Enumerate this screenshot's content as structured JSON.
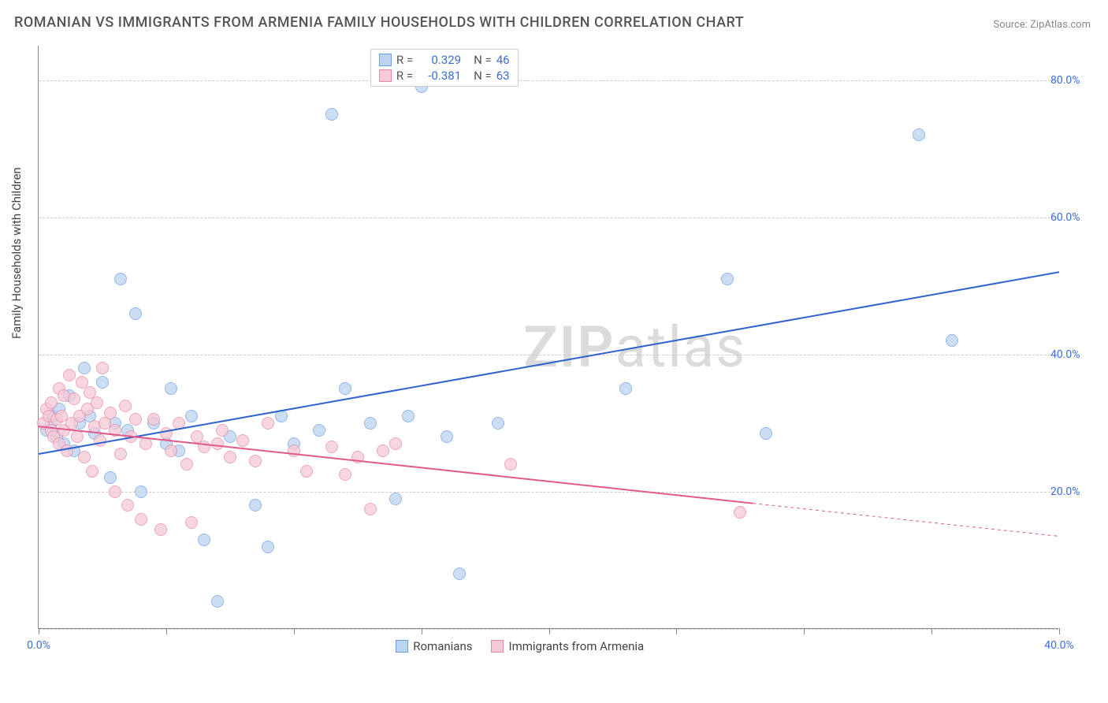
{
  "title": "ROMANIAN VS IMMIGRANTS FROM ARMENIA FAMILY HOUSEHOLDS WITH CHILDREN CORRELATION CHART",
  "source_prefix": "Source: ",
  "source_name": "ZipAtlas.com",
  "ylabel": "Family Households with Children",
  "watermark_bold": "ZIP",
  "watermark_light": "atlas",
  "chart": {
    "type": "scatter",
    "background_color": "#ffffff",
    "grid_color": "#cccccc",
    "xlim": [
      0,
      40
    ],
    "ylim": [
      0,
      85
    ],
    "x_ticks": [
      0,
      5,
      10,
      15,
      20,
      25,
      30,
      35,
      40
    ],
    "x_tick_labels": {
      "0": "0.0%",
      "40": "40.0%"
    },
    "y_ticks": [
      0,
      20,
      40,
      60,
      80
    ],
    "y_tick_labels": {
      "20": "20.0%",
      "40": "40.0%",
      "60": "60.0%",
      "80": "80.0%"
    },
    "x_tick_label_color": "#3b6fd4",
    "y_tick_label_color": "#3b6fd4",
    "marker_radius": 8,
    "marker_stroke_width": 1,
    "trend_line_width": 2,
    "series": [
      {
        "key": "romanians",
        "label": "Romanians",
        "R": "0.329",
        "N": "46",
        "fill": "#bcd4f0",
        "stroke": "#6fa0de",
        "line_color": "#2f64d0",
        "trend": {
          "x1": 0,
          "y1": 25.5,
          "x2": 40,
          "y2": 52,
          "dash_from_x": null
        },
        "points": [
          [
            0.3,
            29
          ],
          [
            0.5,
            30
          ],
          [
            0.6,
            31
          ],
          [
            0.7,
            28
          ],
          [
            0.8,
            32
          ],
          [
            1.0,
            27
          ],
          [
            1.2,
            34
          ],
          [
            1.4,
            26
          ],
          [
            1.6,
            30
          ],
          [
            1.8,
            38
          ],
          [
            2.0,
            31
          ],
          [
            2.2,
            28.5
          ],
          [
            2.5,
            36
          ],
          [
            2.8,
            22
          ],
          [
            3.0,
            30
          ],
          [
            3.2,
            51
          ],
          [
            3.5,
            29
          ],
          [
            3.8,
            46
          ],
          [
            4.0,
            20
          ],
          [
            4.5,
            30
          ],
          [
            5.0,
            27
          ],
          [
            5.2,
            35
          ],
          [
            5.5,
            26
          ],
          [
            6.0,
            31
          ],
          [
            6.5,
            13
          ],
          [
            7.0,
            4
          ],
          [
            7.5,
            28
          ],
          [
            8.5,
            18
          ],
          [
            9.0,
            12
          ],
          [
            9.5,
            31
          ],
          [
            10.0,
            27
          ],
          [
            11.0,
            29
          ],
          [
            11.5,
            75
          ],
          [
            12.0,
            35
          ],
          [
            13.0,
            30
          ],
          [
            14.0,
            19
          ],
          [
            14.5,
            31
          ],
          [
            15.0,
            79
          ],
          [
            16.0,
            28
          ],
          [
            16.5,
            8
          ],
          [
            18.0,
            30
          ],
          [
            23.0,
            35
          ],
          [
            27.0,
            51
          ],
          [
            28.5,
            28.5
          ],
          [
            34.5,
            72
          ],
          [
            35.8,
            42
          ]
        ]
      },
      {
        "key": "armenia",
        "label": "Immigrants from Armenia",
        "R": "-0.381",
        "N": "63",
        "fill": "#f6c9d6",
        "stroke": "#e88aa8",
        "line_color": "#e05a8a",
        "trend": {
          "x1": 0,
          "y1": 29.5,
          "x2": 40,
          "y2": 13.5,
          "dash_from_x": 28
        },
        "points": [
          [
            0.2,
            30
          ],
          [
            0.3,
            32
          ],
          [
            0.4,
            31
          ],
          [
            0.5,
            29
          ],
          [
            0.5,
            33
          ],
          [
            0.6,
            28
          ],
          [
            0.7,
            30.5
          ],
          [
            0.8,
            35
          ],
          [
            0.8,
            27
          ],
          [
            0.9,
            31
          ],
          [
            1.0,
            34
          ],
          [
            1.0,
            29
          ],
          [
            1.1,
            26
          ],
          [
            1.2,
            37
          ],
          [
            1.3,
            30
          ],
          [
            1.4,
            33.5
          ],
          [
            1.5,
            28
          ],
          [
            1.6,
            31
          ],
          [
            1.7,
            36
          ],
          [
            1.8,
            25
          ],
          [
            1.9,
            32
          ],
          [
            2.0,
            34.5
          ],
          [
            2.1,
            23
          ],
          [
            2.2,
            29.5
          ],
          [
            2.3,
            33
          ],
          [
            2.4,
            27.5
          ],
          [
            2.5,
            38
          ],
          [
            2.6,
            30
          ],
          [
            2.8,
            31.5
          ],
          [
            3.0,
            20
          ],
          [
            3.0,
            29
          ],
          [
            3.2,
            25.5
          ],
          [
            3.4,
            32.5
          ],
          [
            3.5,
            18
          ],
          [
            3.6,
            28
          ],
          [
            3.8,
            30.5
          ],
          [
            4.0,
            16
          ],
          [
            4.2,
            27
          ],
          [
            4.5,
            30.5
          ],
          [
            4.8,
            14.5
          ],
          [
            5.0,
            28.5
          ],
          [
            5.2,
            26
          ],
          [
            5.5,
            30
          ],
          [
            5.8,
            24
          ],
          [
            6.0,
            15.5
          ],
          [
            6.2,
            28
          ],
          [
            6.5,
            26.5
          ],
          [
            7.0,
            27
          ],
          [
            7.2,
            29
          ],
          [
            7.5,
            25
          ],
          [
            8.0,
            27.5
          ],
          [
            8.5,
            24.5
          ],
          [
            9.0,
            30
          ],
          [
            10.0,
            26
          ],
          [
            10.5,
            23
          ],
          [
            11.5,
            26.5
          ],
          [
            12.0,
            22.5
          ],
          [
            12.5,
            25
          ],
          [
            13.0,
            17.5
          ],
          [
            13.5,
            26
          ],
          [
            14.0,
            27
          ],
          [
            18.5,
            24
          ],
          [
            27.5,
            17
          ]
        ]
      }
    ],
    "legend_top": {
      "r_label": "R =",
      "n_label": "N =",
      "value_color": "#3b6fd4"
    },
    "legend_bottom_items": [
      "romanians",
      "armenia"
    ]
  }
}
